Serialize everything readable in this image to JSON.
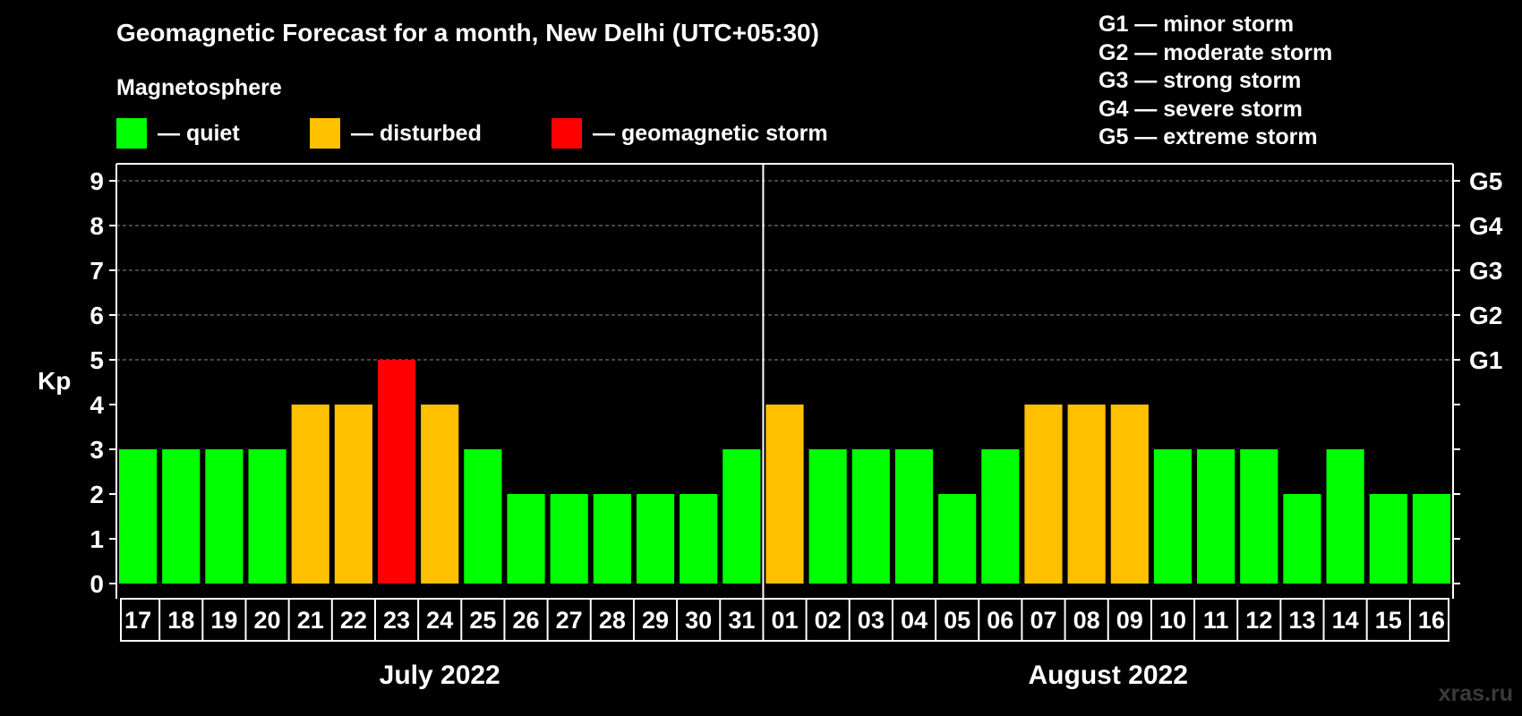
{
  "header": {
    "title": "Geomagnetic Forecast for a month, New Delhi (UTC+05:30)",
    "subtitle": "Magnetosphere"
  },
  "legend": [
    {
      "label": "— quiet",
      "color": "#00ff00"
    },
    {
      "label": "— disturbed",
      "color": "#ffc000"
    },
    {
      "label": "— geomagnetic storm",
      "color": "#ff0000"
    }
  ],
  "g_legend": [
    "G1 — minor storm",
    "G2 — moderate storm",
    "G3 — strong storm",
    "G4 — severe storm",
    "G5 — extreme storm"
  ],
  "watermark": "xras.ru",
  "chart_data": {
    "type": "bar",
    "ylabel": "Kp",
    "ylim": [
      0,
      9
    ],
    "yticks": [
      "0",
      "1",
      "2",
      "3",
      "4",
      "5",
      "6",
      "7",
      "8",
      "9"
    ],
    "right_ticks": [
      {
        "kp": 5,
        "label": "G1"
      },
      {
        "kp": 6,
        "label": "G2"
      },
      {
        "kp": 7,
        "label": "G3"
      },
      {
        "kp": 8,
        "label": "G4"
      },
      {
        "kp": 9,
        "label": "G5"
      }
    ],
    "categories": [
      "17",
      "18",
      "19",
      "20",
      "21",
      "22",
      "23",
      "24",
      "25",
      "26",
      "27",
      "28",
      "29",
      "30",
      "31",
      "01",
      "02",
      "03",
      "04",
      "05",
      "06",
      "07",
      "08",
      "09",
      "10",
      "11",
      "12",
      "13",
      "14",
      "15",
      "16"
    ],
    "values": [
      3,
      3,
      3,
      3,
      4,
      4,
      5,
      4,
      3,
      2,
      2,
      2,
      2,
      2,
      3,
      4,
      3,
      3,
      3,
      2,
      3,
      4,
      4,
      4,
      3,
      3,
      3,
      2,
      3,
      2,
      2
    ],
    "months": [
      {
        "label": "July 2022",
        "start": 0,
        "count": 15
      },
      {
        "label": "August 2022",
        "start": 15,
        "count": 16
      }
    ],
    "colors": {
      "quiet": "#00ff00",
      "disturbed": "#ffc000",
      "storm": "#ff0000"
    },
    "grid": "dashed at Kp 5-9"
  }
}
